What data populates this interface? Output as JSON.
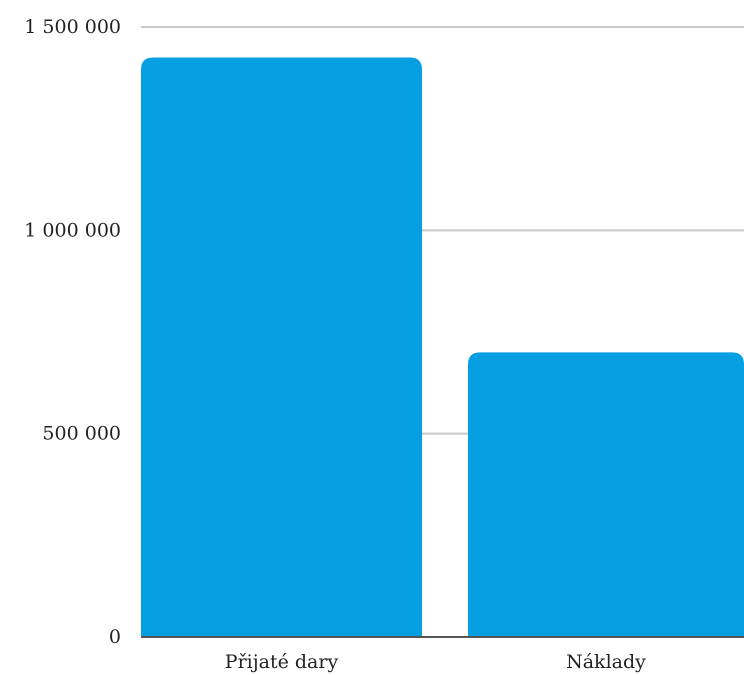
{
  "chart_data": {
    "type": "bar",
    "categories": [
      "Přijaté dary",
      "Náklady"
    ],
    "values": [
      1425000,
      700000
    ],
    "title": "",
    "xlabel": "",
    "ylabel": "",
    "ylim": [
      0,
      1500000
    ],
    "yticks": [
      0,
      500000,
      1000000,
      1500000
    ],
    "ytick_labels": [
      "0",
      "500 000",
      "1 000 000",
      "1 500 000"
    ],
    "grid": true,
    "bar_color": "#069FE2",
    "grid_color": "#C8C8C8",
    "axis_color": "#555555"
  }
}
